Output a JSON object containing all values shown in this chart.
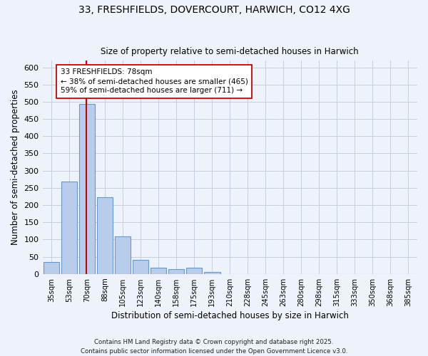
{
  "title_line1": "33, FRESHFIELDS, DOVERCOURT, HARWICH, CO12 4XG",
  "title_line2": "Size of property relative to semi-detached houses in Harwich",
  "xlabel": "Distribution of semi-detached houses by size in Harwich",
  "ylabel": "Number of semi-detached properties",
  "categories": [
    "35sqm",
    "53sqm",
    "70sqm",
    "88sqm",
    "105sqm",
    "123sqm",
    "140sqm",
    "158sqm",
    "175sqm",
    "193sqm",
    "210sqm",
    "228sqm",
    "245sqm",
    "263sqm",
    "280sqm",
    "298sqm",
    "315sqm",
    "333sqm",
    "350sqm",
    "368sqm",
    "385sqm"
  ],
  "values": [
    35,
    268,
    493,
    223,
    109,
    40,
    18,
    15,
    18,
    5,
    0,
    0,
    0,
    0,
    0,
    0,
    0,
    0,
    0,
    0,
    0
  ],
  "bar_color": "#b8cceb",
  "bar_edge_color": "#6699cc",
  "highlighted_bar_index": 2,
  "highlight_line_color": "#cc0000",
  "property_size": "78sqm",
  "property_name": "33 FRESHFIELDS",
  "pct_smaller": 38,
  "count_smaller": 465,
  "pct_larger": 59,
  "count_larger": 711,
  "annotation_box_color": "#ffffff",
  "annotation_box_edge": "#cc0000",
  "ylim": [
    0,
    620
  ],
  "yticks": [
    0,
    50,
    100,
    150,
    200,
    250,
    300,
    350,
    400,
    450,
    500,
    550,
    600
  ],
  "background_color": "#eef2fa",
  "grid_color": "#c5cedf",
  "footer_line1": "Contains HM Land Registry data © Crown copyright and database right 2025.",
  "footer_line2": "Contains public sector information licensed under the Open Government Licence v3.0."
}
